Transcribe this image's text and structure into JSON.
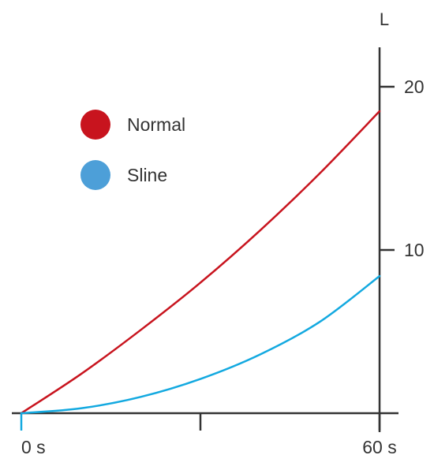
{
  "chart_data": {
    "type": "line",
    "title": "",
    "xlabel": "",
    "ylabel": "L",
    "xlim": [
      0,
      60
    ],
    "ylim": [
      0,
      20
    ],
    "x_ticks": [
      0,
      30,
      60
    ],
    "x_tick_labels": [
      "0 s",
      "",
      "60 s"
    ],
    "y_ticks": [
      10,
      20
    ],
    "y_tick_labels": [
      "10",
      "20"
    ],
    "legend_position": "top-left",
    "grid": false,
    "series": [
      {
        "name": "Normal",
        "color": "#c8141e",
        "x": [
          0,
          10,
          20,
          30,
          40,
          50,
          60
        ],
        "y": [
          0,
          2.4,
          5.1,
          8.0,
          11.2,
          14.7,
          18.5
        ]
      },
      {
        "name": "Sline",
        "color": "#13a9e0",
        "x": [
          0,
          10,
          20,
          30,
          40,
          50,
          60
        ],
        "y": [
          0,
          0.3,
          1.0,
          2.1,
          3.6,
          5.6,
          8.4
        ]
      }
    ],
    "legend_marker_colors": [
      "#c8141e",
      "#4d9fd8"
    ]
  }
}
